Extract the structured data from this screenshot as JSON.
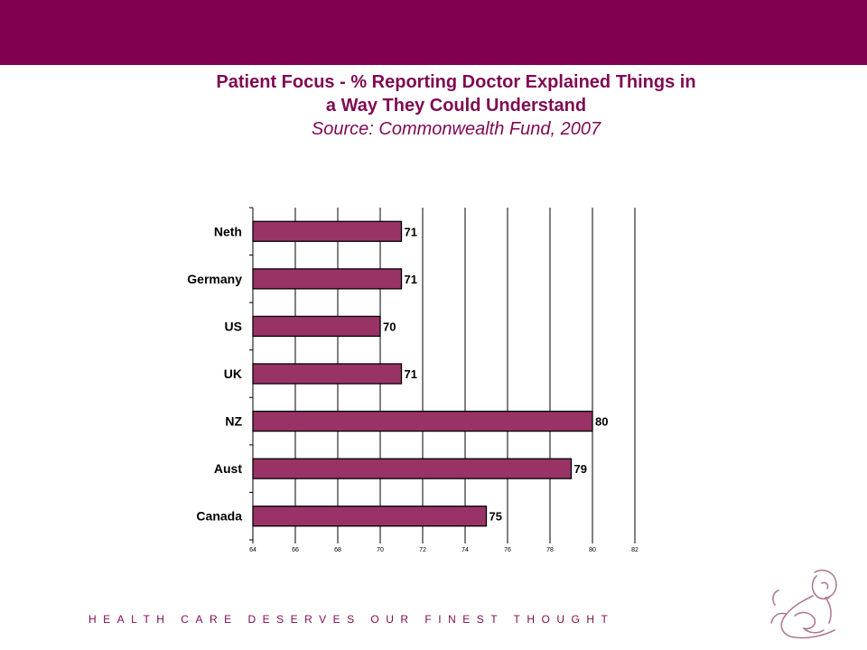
{
  "header": {
    "title_line1": "Patient Focus - % Reporting Doctor Explained Things in",
    "title_line2": "a Way They Could Understand",
    "subtitle": "Source: Commonwealth Fund, 2007"
  },
  "footer": {
    "tagline": "HEALTH CARE DESERVES OUR FINEST THOUGHT"
  },
  "logo": {
    "icon": "mother-and-child-logo-icon"
  },
  "colors": {
    "band": "#820050",
    "title": "#7f0a52",
    "bar": "#993366"
  },
  "chart_data": {
    "type": "bar",
    "orientation": "horizontal",
    "categories": [
      "Neth",
      "Germany",
      "US",
      "UK",
      "NZ",
      "Aust",
      "Canada"
    ],
    "values": [
      71,
      71,
      70,
      71,
      80,
      79,
      75
    ],
    "xlim": [
      64,
      82
    ],
    "xticks": [
      "64",
      "66",
      "68",
      "70",
      "72",
      "74",
      "76",
      "78",
      "80",
      "82"
    ],
    "grid": true,
    "data_labels": true
  }
}
